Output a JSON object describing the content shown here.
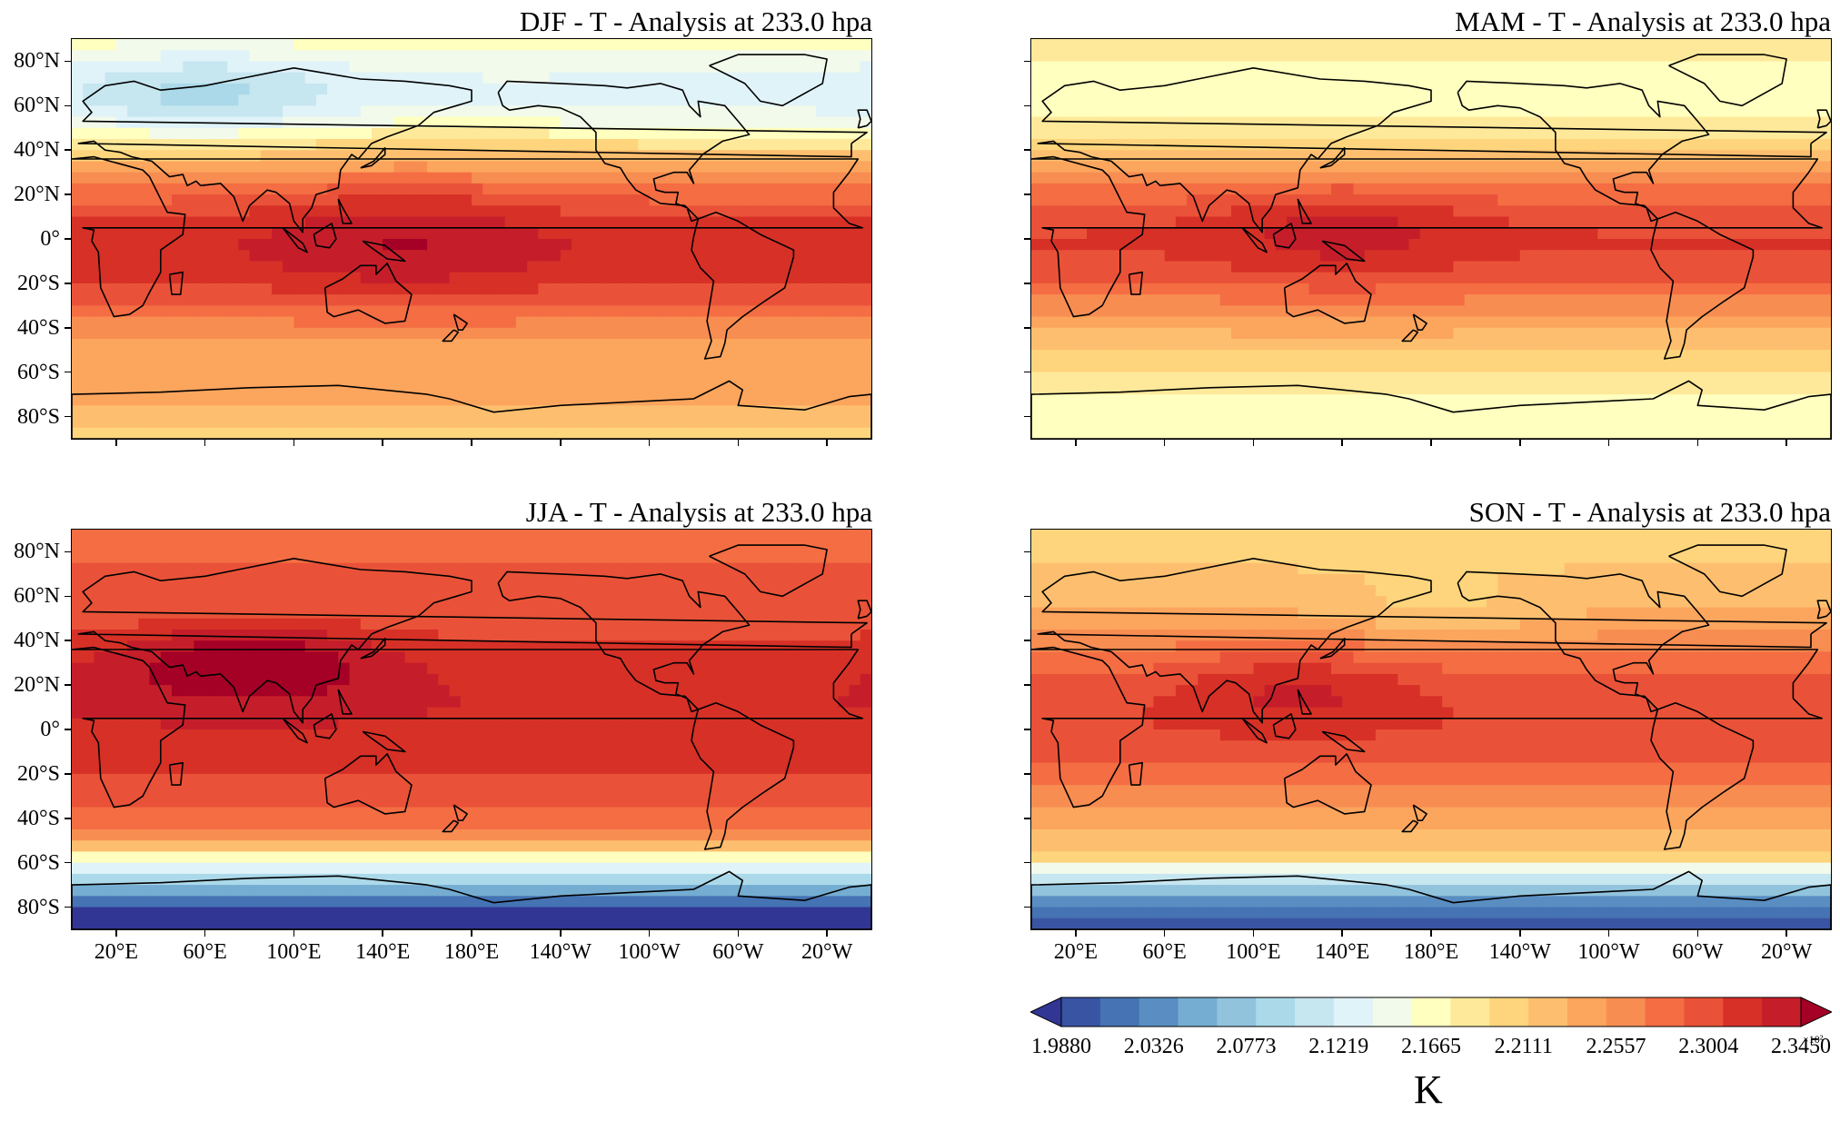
{
  "panels": [
    {
      "key": "djf",
      "title": "DJF - T - Analysis at 233.0 hpa",
      "season": "DJF"
    },
    {
      "key": "mam",
      "title": "MAM - T - Analysis at 233.0 hpa",
      "season": "MAM"
    },
    {
      "key": "jja",
      "title": "JJA - T - Analysis at 233.0 hpa",
      "season": "JJA"
    },
    {
      "key": "son",
      "title": "SON - T - Analysis at 233.0 hpa",
      "season": "SON"
    }
  ],
  "lat_ticks": [
    "80°N",
    "60°N",
    "40°N",
    "20°N",
    "0°",
    "20°S",
    "40°S",
    "60°S",
    "80°S"
  ],
  "lon_ticks": [
    "20°E",
    "60°E",
    "100°E",
    "140°E",
    "180°E",
    "140°W",
    "100°W",
    "60°W",
    "20°W"
  ],
  "colorbar": {
    "tick_labels": [
      "1.9880",
      "2.0326",
      "2.0773",
      "2.1219",
      "2.1665",
      "2.2111",
      "2.2557",
      "2.3004",
      "2.3450"
    ],
    "unit": "K",
    "exponent": "×10²",
    "min": 198.8,
    "max": 234.5,
    "colors": [
      "#313695",
      "#3a54a4",
      "#4573b3",
      "#5a8ec2",
      "#74add1",
      "#91c3dd",
      "#abd9e9",
      "#c6e6f0",
      "#e0f3f8",
      "#f2faeb",
      "#ffffbf",
      "#fee99a",
      "#fed57c",
      "#fdbf6f",
      "#fca55d",
      "#f88d52",
      "#f46d43",
      "#e95238",
      "#d73027",
      "#c51e2a",
      "#a50026"
    ],
    "extend": "both"
  }
}
